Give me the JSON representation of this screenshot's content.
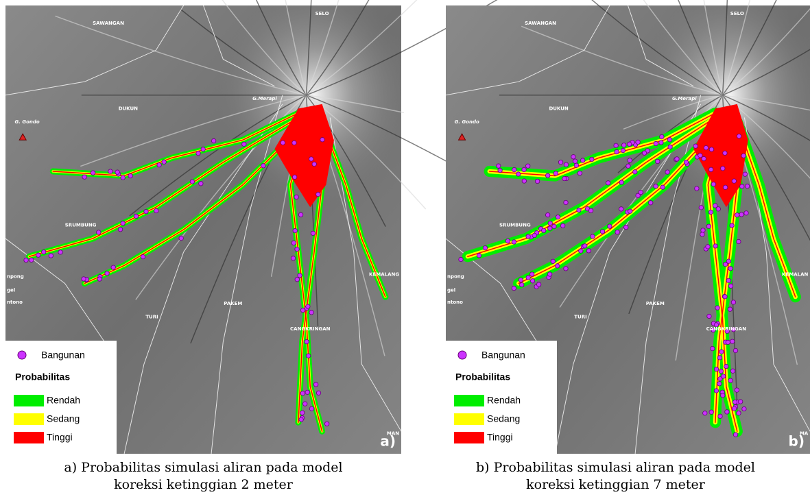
{
  "panels": [
    {
      "panel_label": "a)",
      "place_labels": [
        "SAWANGAN",
        "SELO",
        "G.Merapi",
        "DUKUN",
        "G. Gondo",
        "SRUMBUNG",
        "KEMALANG",
        "PAKEM",
        "TURI",
        "CANGKRINGAN",
        "npong",
        "gel",
        "ntono",
        "MAN"
      ],
      "legend": {
        "building": "Bangunan",
        "title": "Probabilitas",
        "low": "Rendah",
        "medium": "Sedang",
        "high": "Tinggi"
      },
      "caption": [
        "a) Probabilitas simulasi aliran pada model",
        "koreksi ketinggian 2 meter"
      ]
    },
    {
      "panel_label": "b)",
      "place_labels": [
        "SAWANGAN",
        "SELO",
        "G.Merapi",
        "DUKUN",
        "G. Gondo",
        "SRUMBUNG",
        "KEMALAN",
        "PAKEM",
        "TURI",
        "CANGKRINGAN",
        "npong",
        "gel",
        "ntono",
        "MA"
      ],
      "legend": {
        "building": "Bangunan",
        "title": "Probabilitas",
        "low": "Rendah",
        "medium": "Sedang",
        "high": "Tinggi"
      },
      "caption": [
        "b) Probabilitas simulasi aliran pada model",
        "koreksi ketinggian 7 meter"
      ]
    }
  ]
}
